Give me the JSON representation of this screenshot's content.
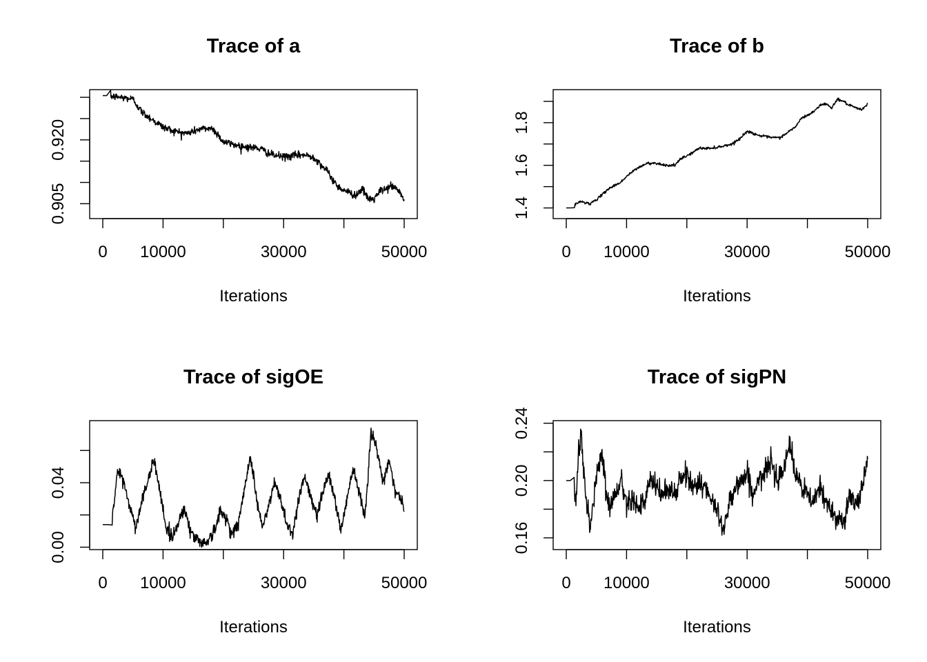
{
  "chart_data": [
    {
      "type": "line",
      "title": "Trace of a",
      "xlabel": "Iterations",
      "ylabel": "",
      "xlim": [
        0,
        50000
      ],
      "ylim": [
        0.9015,
        0.9318
      ],
      "x_ticks": [
        0,
        10000,
        20000,
        30000,
        40000,
        50000
      ],
      "x_tick_labels": [
        "0",
        "10000",
        "",
        "30000",
        "",
        "50000"
      ],
      "y_ticks": [
        0.905,
        0.91,
        0.915,
        0.92,
        0.925,
        0.93
      ],
      "y_tick_labels": [
        "0.905",
        "",
        "",
        "0.920",
        "",
        ""
      ],
      "series": [
        {
          "noise": 0.0009,
          "color": "#000000",
          "x": [
            0,
            1300,
            1500,
            3000,
            5000,
            6500,
            8000,
            10000,
            12000,
            14000,
            16000,
            18000,
            19000,
            20000,
            23000,
            26000,
            28000,
            30000,
            33000,
            35000,
            37000,
            39000,
            41000,
            42000,
            43000,
            44000,
            45000,
            46000,
            47000,
            48000,
            49000,
            50000
          ],
          "values": [
            0.9304,
            0.9304,
            0.9302,
            0.93,
            0.9296,
            0.9265,
            0.925,
            0.923,
            0.922,
            0.9215,
            0.9225,
            0.9228,
            0.9215,
            0.9195,
            0.9185,
            0.918,
            0.9165,
            0.916,
            0.9165,
            0.916,
            0.913,
            0.909,
            0.9075,
            0.907,
            0.9085,
            0.9062,
            0.906,
            0.908,
            0.9085,
            0.9092,
            0.9082,
            0.906
          ]
        }
      ]
    },
    {
      "type": "line",
      "title": "Trace of b",
      "xlabel": "Iterations",
      "ylabel": "",
      "xlim": [
        0,
        50000
      ],
      "ylim": [
        1.35,
        1.955
      ],
      "x_ticks": [
        0,
        10000,
        20000,
        30000,
        40000,
        50000
      ],
      "x_tick_labels": [
        "0",
        "10000",
        "",
        "30000",
        "",
        "50000"
      ],
      "y_ticks": [
        1.4,
        1.5,
        1.6,
        1.7,
        1.8,
        1.9
      ],
      "y_tick_labels": [
        "1.4",
        "",
        "1.6",
        "",
        "1.8",
        ""
      ],
      "series": [
        {
          "noise": 0.006,
          "color": "#000000",
          "x": [
            0,
            1300,
            1600,
            2500,
            4000,
            5500,
            7000,
            9000,
            10500,
            12000,
            13500,
            15000,
            16500,
            18000,
            19000,
            21000,
            22000,
            24000,
            26000,
            27500,
            29000,
            30000,
            32000,
            34000,
            35500,
            37000,
            38000,
            39000,
            41000,
            42000,
            43000,
            44000,
            45000,
            46000,
            47000,
            48000,
            49000,
            50000
          ],
          "values": [
            1.4,
            1.4,
            1.42,
            1.43,
            1.42,
            1.45,
            1.49,
            1.52,
            1.56,
            1.59,
            1.61,
            1.61,
            1.6,
            1.6,
            1.63,
            1.66,
            1.68,
            1.68,
            1.69,
            1.7,
            1.73,
            1.76,
            1.74,
            1.73,
            1.73,
            1.76,
            1.78,
            1.82,
            1.85,
            1.88,
            1.89,
            1.87,
            1.91,
            1.9,
            1.88,
            1.87,
            1.86,
            1.89
          ]
        }
      ]
    },
    {
      "type": "line",
      "title": "Trace of sigOE",
      "xlabel": "Iterations",
      "ylabel": "",
      "xlim": [
        0,
        50000
      ],
      "ylim": [
        -0.0015,
        0.0785
      ],
      "x_ticks": [
        0,
        10000,
        20000,
        30000,
        40000,
        50000
      ],
      "x_tick_labels": [
        "0",
        "10000",
        "",
        "30000",
        "",
        "50000"
      ],
      "y_ticks": [
        0.0,
        0.02,
        0.04,
        0.06
      ],
      "y_tick_labels": [
        "0.00",
        "",
        "0.04",
        ""
      ],
      "series": [
        {
          "noise": 0.004,
          "color": "#000000",
          "x": [
            0,
            1500,
            1800,
            2500,
            3500,
            4500,
            5500,
            6500,
            7500,
            8500,
            9500,
            10500,
            11500,
            12500,
            13500,
            14500,
            15500,
            16500,
            17500,
            18500,
            19500,
            20500,
            21500,
            22500,
            23500,
            24500,
            25500,
            26500,
            27500,
            28500,
            29500,
            30500,
            31500,
            32500,
            33500,
            34500,
            35500,
            36500,
            37500,
            38500,
            39500,
            40500,
            41500,
            42500,
            43500,
            44000,
            44500,
            45500,
            46500,
            47500,
            48500,
            49500,
            50000
          ],
          "values": [
            0.014,
            0.014,
            0.025,
            0.048,
            0.04,
            0.025,
            0.012,
            0.03,
            0.04,
            0.055,
            0.035,
            0.012,
            0.006,
            0.015,
            0.025,
            0.01,
            0.005,
            0.003,
            0.004,
            0.01,
            0.022,
            0.018,
            0.008,
            0.015,
            0.035,
            0.058,
            0.03,
            0.012,
            0.025,
            0.04,
            0.03,
            0.015,
            0.008,
            0.03,
            0.045,
            0.03,
            0.02,
            0.035,
            0.045,
            0.03,
            0.01,
            0.03,
            0.05,
            0.035,
            0.02,
            0.045,
            0.072,
            0.06,
            0.04,
            0.055,
            0.035,
            0.03,
            0.022
          ]
        }
      ]
    },
    {
      "type": "line",
      "title": "Trace of sigPN",
      "xlabel": "Iterations",
      "ylabel": "",
      "xlim": [
        0,
        50000
      ],
      "ylim": [
        0.1518,
        0.2418
      ],
      "x_ticks": [
        0,
        10000,
        20000,
        30000,
        40000,
        50000
      ],
      "x_tick_labels": [
        "0",
        "10000",
        "",
        "30000",
        "",
        "50000"
      ],
      "y_ticks": [
        0.16,
        0.18,
        0.2,
        0.22,
        0.24
      ],
      "y_tick_labels": [
        "0.16",
        "",
        "0.20",
        "",
        "0.24"
      ],
      "series": [
        {
          "noise": 0.008,
          "color": "#000000",
          "x": [
            0,
            1300,
            1600,
            2000,
            2500,
            3000,
            3500,
            4000,
            4500,
            5000,
            6000,
            7000,
            8000,
            9000,
            10000,
            11000,
            12000,
            13000,
            14000,
            15000,
            16000,
            17000,
            18000,
            19000,
            20000,
            21000,
            22000,
            23000,
            24000,
            25000,
            26000,
            27000,
            28000,
            29000,
            30000,
            31000,
            32000,
            33000,
            34000,
            35000,
            36000,
            37000,
            38000,
            39000,
            40000,
            41000,
            42000,
            43000,
            44000,
            45000,
            46000,
            47000,
            48000,
            49000,
            50000
          ],
          "values": [
            0.2,
            0.2,
            0.18,
            0.22,
            0.235,
            0.2,
            0.175,
            0.17,
            0.185,
            0.205,
            0.22,
            0.18,
            0.19,
            0.2,
            0.185,
            0.19,
            0.18,
            0.185,
            0.2,
            0.195,
            0.19,
            0.195,
            0.19,
            0.2,
            0.205,
            0.195,
            0.2,
            0.195,
            0.185,
            0.18,
            0.165,
            0.185,
            0.195,
            0.2,
            0.205,
            0.19,
            0.2,
            0.205,
            0.215,
            0.2,
            0.21,
            0.225,
            0.205,
            0.195,
            0.19,
            0.185,
            0.195,
            0.185,
            0.18,
            0.175,
            0.17,
            0.19,
            0.18,
            0.195,
            0.215
          ]
        }
      ]
    }
  ]
}
